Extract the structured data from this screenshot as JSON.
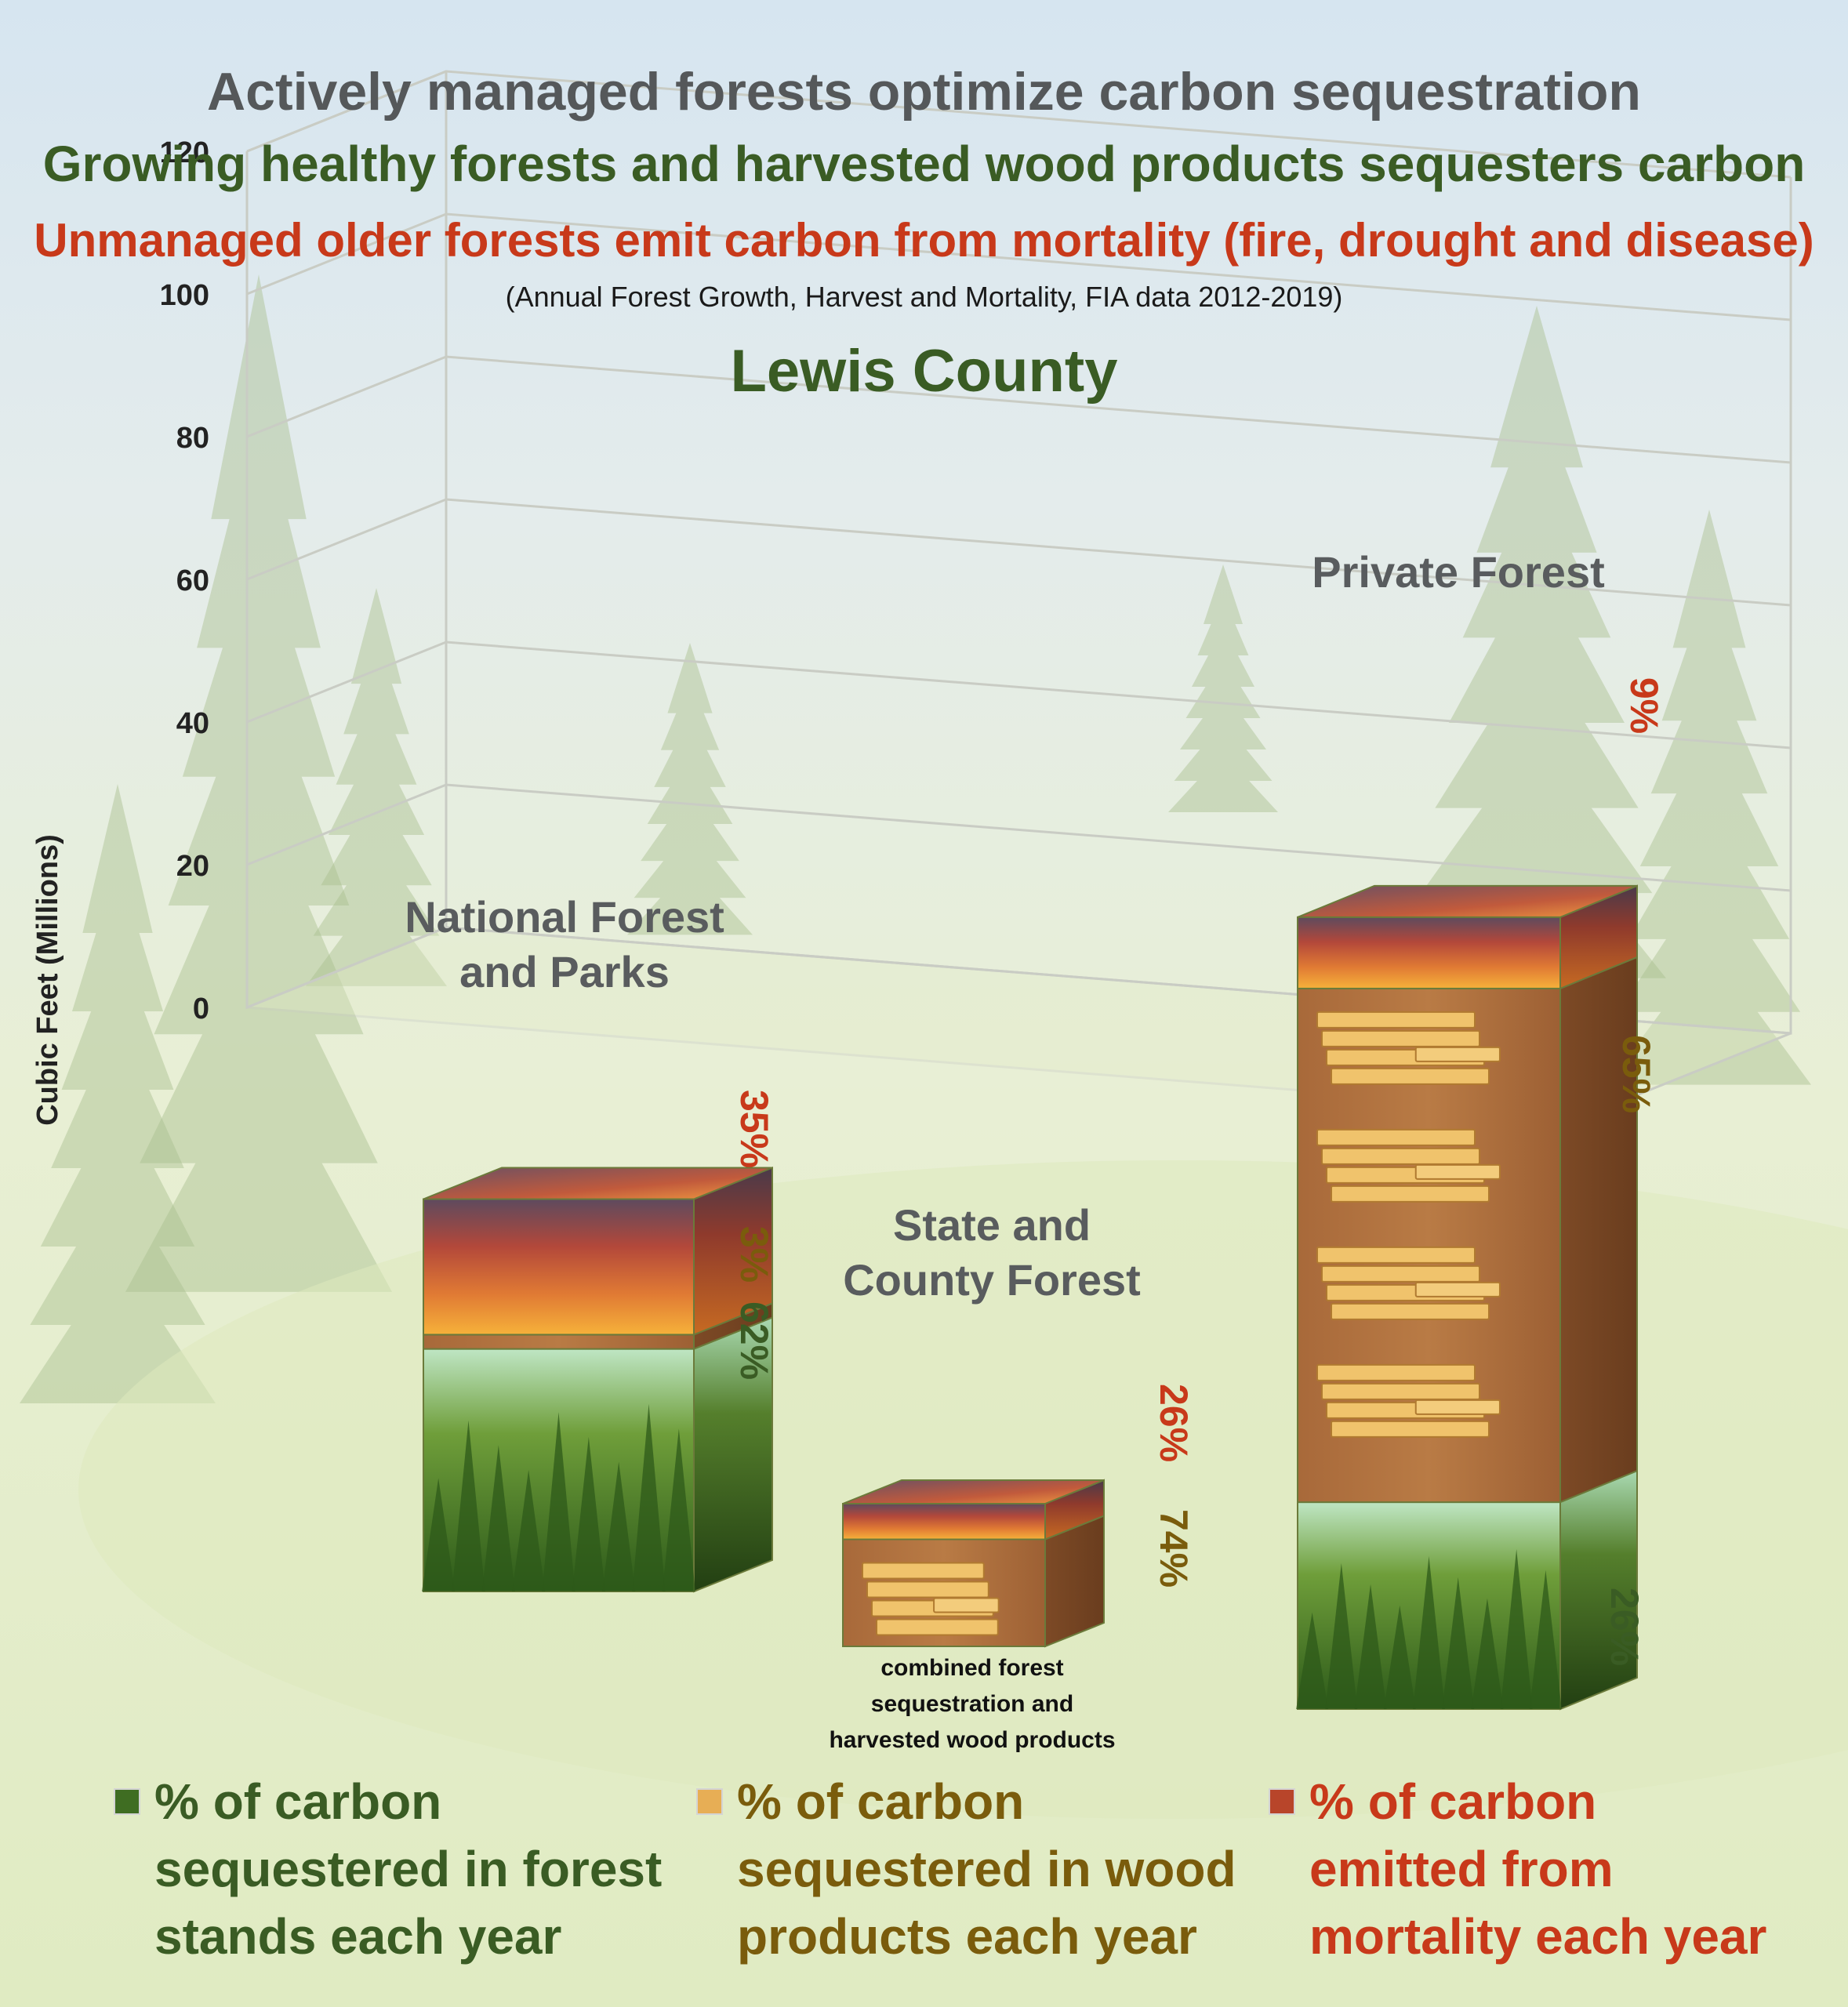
{
  "titles": {
    "main": "Actively managed forests optimize carbon sequestration",
    "green": "Growing healthy forests and harvested wood products sequesters carbon",
    "red": "Unmanaged older forests emit carbon from mortality (fire, drought and disease)",
    "source": "(Annual Forest Growth, Harvest and Mortality, FIA data 2012-2019)",
    "county": "Lewis County"
  },
  "chart_data": {
    "type": "bar",
    "stacked": true,
    "ylabel": "Cubic Feet (Millions)",
    "ylim": [
      0,
      120
    ],
    "yticks": [
      0,
      20,
      40,
      60,
      80,
      100,
      120
    ],
    "categories": [
      "National Forest and Parks",
      "State and County Forest",
      "Private Forest"
    ],
    "category_labels": [
      [
        "National Forest",
        "and Parks"
      ],
      [
        "State and",
        "County Forest"
      ],
      [
        "Private Forest"
      ]
    ],
    "series": [
      {
        "key": "forest",
        "color": "#4f7d2a",
        "values": [
          34,
          0,
          29
        ]
      },
      {
        "key": "wood",
        "color": "#d79b49",
        "values": [
          2,
          15,
          72
        ]
      },
      {
        "key": "mortality",
        "color": "#c8391a",
        "values": [
          19,
          5,
          10
        ]
      }
    ],
    "percent_labels": [
      [
        {
          "text": "62%",
          "color": "#3a5c24",
          "value": 62
        },
        {
          "text": "3%",
          "color": "#7a5c0c",
          "value": 3
        },
        {
          "text": "35%",
          "color": "#c8391a",
          "value": 35
        }
      ],
      [
        {
          "text": "74%",
          "color": "#7a5c0c",
          "value": 74
        },
        {
          "text": "26%",
          "color": "#c8391a",
          "value": 26
        }
      ],
      [
        {
          "text": "26%",
          "color": "#3a5c24",
          "value": 26
        },
        {
          "text": "65%",
          "color": "#7a5c0c",
          "value": 65
        },
        {
          "text": "9%",
          "color": "#c8391a",
          "value": 9
        }
      ]
    ],
    "annotation": [
      "combined forest",
      "sequestration and",
      "harvested wood products"
    ],
    "grid": true
  },
  "legend": [
    {
      "lines": [
        "% of carbon",
        "sequestered in forest",
        "stands each year"
      ],
      "color": "#3a5c24",
      "swatch": "#3f6d22"
    },
    {
      "lines": [
        "% of carbon",
        "sequestered in wood",
        "products each year"
      ],
      "color": "#7a5c0c",
      "swatch": "#e7ae55"
    },
    {
      "lines": [
        "% of carbon",
        "emitted from",
        "mortality each year"
      ],
      "color": "#c8391a",
      "swatch": "#b8452a"
    }
  ]
}
